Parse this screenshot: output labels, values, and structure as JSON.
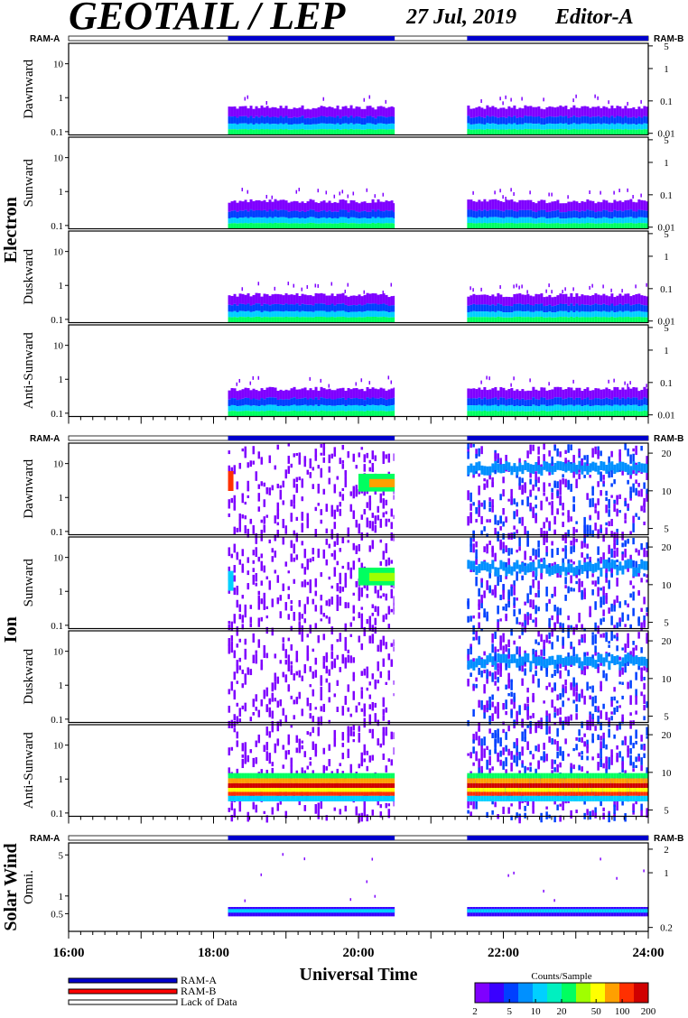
{
  "header": {
    "title": "GEOTAIL / LEP",
    "date_label": "27 Jul, 2019",
    "editor_label": "Editor-A"
  },
  "colors": {
    "ram_a": "#0000cc",
    "ram_b": "#ff0000",
    "lack_of_data": "#ffffff",
    "colormap": [
      "#7f00ff",
      "#3a00ff",
      "#0040ff",
      "#0090ff",
      "#00d0ff",
      "#00f0c0",
      "#00ff60",
      "#a0ff00",
      "#ffff00",
      "#ffa000",
      "#ff3000",
      "#d00000"
    ]
  },
  "chart_data": {
    "type": "heatmap",
    "xlabel": "Universal Time",
    "x_range_hours": [
      16,
      24
    ],
    "x_ticks": [
      "16:00",
      "18:00",
      "20:00",
      "22:00",
      "24:00"
    ],
    "x_tick_values": [
      16,
      18,
      20,
      22,
      24
    ],
    "data_intervals": [
      {
        "start": 18.2,
        "end": 20.5,
        "mode": "RAM-A"
      },
      {
        "start": 21.5,
        "end": 24.0,
        "mode": "RAM-A"
      }
    ],
    "ram_a_label": "RAM-A",
    "ram_b_label": "RAM-B",
    "groups": [
      {
        "name": "Electron",
        "panels": [
          {
            "label": "Dawnward",
            "left_ticks": [
              "10",
              "1",
              "0.1"
            ],
            "left_tick_values": [
              10,
              1,
              0.1
            ],
            "right_ticks": [
              "5",
              "1",
              "0.1",
              "0.01"
            ],
            "right_tick_values": [
              5,
              1,
              0.1,
              0.01
            ],
            "y_range": [
              0.08,
              40
            ]
          },
          {
            "label": "Sunward",
            "left_ticks": [
              "10",
              "1",
              "0.1"
            ],
            "left_tick_values": [
              10,
              1,
              0.1
            ],
            "right_ticks": [
              "5",
              "1",
              "0.1",
              "0.01"
            ],
            "right_tick_values": [
              5,
              1,
              0.1,
              0.01
            ],
            "y_range": [
              0.08,
              40
            ]
          },
          {
            "label": "Duskward",
            "left_ticks": [
              "10",
              "1",
              "0.1"
            ],
            "left_tick_values": [
              10,
              1,
              0.1
            ],
            "right_ticks": [
              "5",
              "1",
              "0.1",
              "0.01"
            ],
            "right_tick_values": [
              5,
              1,
              0.1,
              0.01
            ],
            "y_range": [
              0.08,
              40
            ]
          },
          {
            "label": "Anti-Sunward",
            "left_ticks": [
              "10",
              "1",
              "0.1"
            ],
            "left_tick_values": [
              10,
              1,
              0.1
            ],
            "right_ticks": [
              "5",
              "1",
              "0.1",
              "0.01"
            ],
            "right_tick_values": [
              5,
              1,
              0.1,
              0.01
            ],
            "y_range": [
              0.08,
              40
            ]
          }
        ]
      },
      {
        "name": "Ion",
        "panels": [
          {
            "label": "Dawnward",
            "left_ticks": [
              "10",
              "1",
              "0.1"
            ],
            "left_tick_values": [
              10,
              1,
              0.1
            ],
            "right_ticks": [
              "20",
              "10",
              "5"
            ],
            "right_tick_values": [
              20,
              10,
              5
            ],
            "y_range": [
              0.08,
              40
            ]
          },
          {
            "label": "Sunward",
            "left_ticks": [
              "10",
              "1",
              "0.1"
            ],
            "left_tick_values": [
              10,
              1,
              0.1
            ],
            "right_ticks": [
              "20",
              "10",
              "5"
            ],
            "right_tick_values": [
              20,
              10,
              5
            ],
            "y_range": [
              0.08,
              40
            ]
          },
          {
            "label": "Duskward",
            "left_ticks": [
              "10",
              "1",
              "0.1"
            ],
            "left_tick_values": [
              10,
              1,
              0.1
            ],
            "right_ticks": [
              "20",
              "10",
              "5"
            ],
            "right_tick_values": [
              20,
              10,
              5
            ],
            "y_range": [
              0.08,
              40
            ]
          },
          {
            "label": "Anti-Sunward",
            "left_ticks": [
              "10",
              "1",
              "0.1"
            ],
            "left_tick_values": [
              10,
              1,
              0.1
            ],
            "right_ticks": [
              "20",
              "10",
              "5"
            ],
            "right_tick_values": [
              20,
              10,
              5
            ],
            "y_range": [
              0.08,
              40
            ]
          }
        ]
      },
      {
        "name": "Solar Wind",
        "panels": [
          {
            "label": "Omni.",
            "left_ticks": [
              "5",
              "1",
              "0.5"
            ],
            "left_tick_values": [
              5,
              1,
              0.5
            ],
            "right_ticks": [
              "2",
              "1",
              "0.2"
            ],
            "right_tick_values": [
              2,
              1,
              0.2
            ],
            "y_range": [
              0.25,
              8
            ]
          }
        ]
      }
    ],
    "legend": {
      "items": [
        {
          "label": "RAM-A",
          "color": "#0000cc"
        },
        {
          "label": "RAM-B",
          "color": "#ff0000"
        },
        {
          "label": "Lack of Data",
          "color": "#ffffff"
        }
      ]
    },
    "colorbar": {
      "title": "Counts/Sample",
      "ticks": [
        "2",
        "5",
        "10",
        "20",
        "50",
        "100",
        "200"
      ],
      "tick_values": [
        2,
        5,
        10,
        20,
        50,
        100,
        200
      ],
      "range": [
        2,
        200
      ]
    }
  }
}
